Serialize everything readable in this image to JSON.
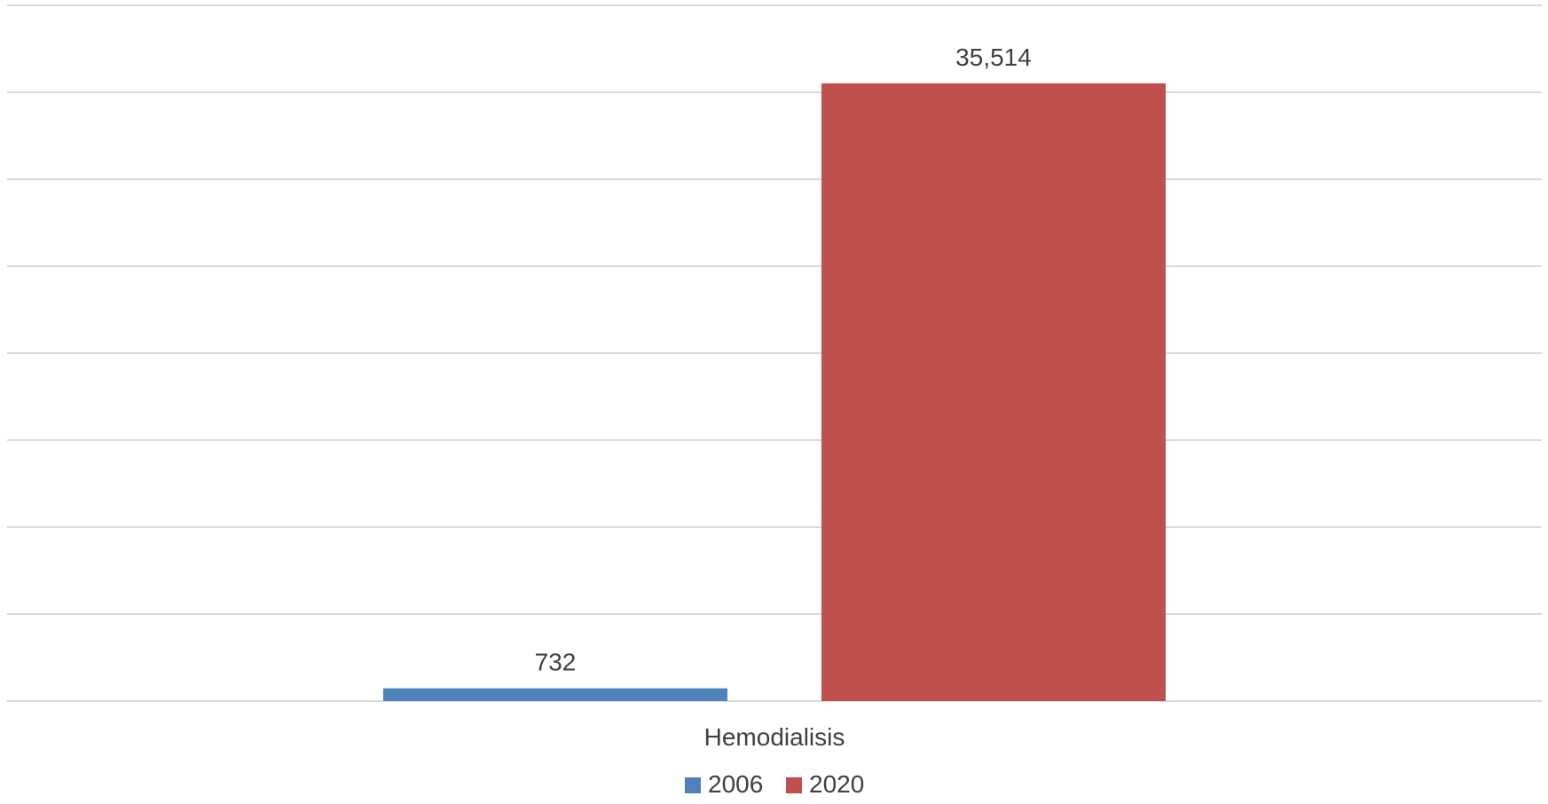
{
  "chart_data": {
    "type": "bar",
    "categories": [
      "Hemodialisis"
    ],
    "series": [
      {
        "name": "2006",
        "values": [
          732
        ],
        "label": "732",
        "color": "#4f81bd"
      },
      {
        "name": "2020",
        "values": [
          35514
        ],
        "label": "35,514",
        "color": "#c0504d"
      }
    ],
    "title": "",
    "xlabel": "",
    "ylabel": "",
    "ylim": [
      0,
      40000
    ],
    "y_tick_step": 5000,
    "y_tick_labels_visible": false,
    "grid": true,
    "legend_position": "bottom"
  }
}
